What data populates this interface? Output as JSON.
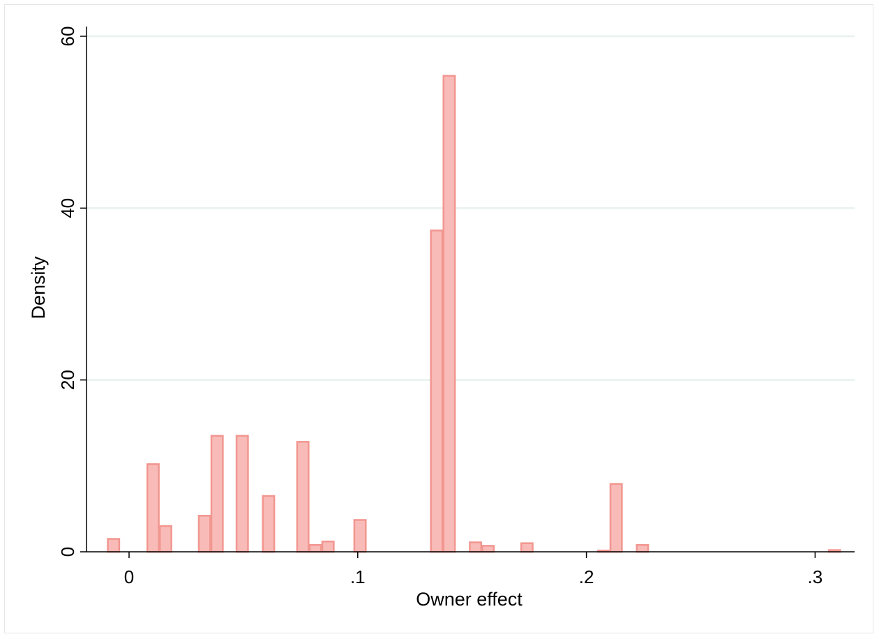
{
  "chart_data": {
    "type": "bar",
    "title": "",
    "xlabel": "Owner effect",
    "ylabel": "Density",
    "xlim": [
      -0.01,
      0.31
    ],
    "ylim": [
      0,
      60
    ],
    "x_ticks": [
      {
        "value": 0,
        "label": "0"
      },
      {
        "value": 0.1,
        "label": ".1"
      },
      {
        "value": 0.2,
        "label": ".2"
      },
      {
        "value": 0.3,
        "label": ".3"
      }
    ],
    "y_ticks": [
      {
        "value": 0,
        "label": "0"
      },
      {
        "value": 20,
        "label": "20"
      },
      {
        "value": 40,
        "label": "40"
      },
      {
        "value": 60,
        "label": "60"
      }
    ],
    "grid": true,
    "bin_width": 0.005,
    "bars": [
      {
        "x": -0.0068,
        "density": 1.5
      },
      {
        "x": 0.0105,
        "density": 10.2
      },
      {
        "x": 0.016,
        "density": 3.0
      },
      {
        "x": 0.033,
        "density": 4.2
      },
      {
        "x": 0.0385,
        "density": 13.5
      },
      {
        "x": 0.0495,
        "density": 13.5
      },
      {
        "x": 0.061,
        "density": 6.5
      },
      {
        "x": 0.076,
        "density": 12.8
      },
      {
        "x": 0.0815,
        "density": 0.8
      },
      {
        "x": 0.087,
        "density": 1.2
      },
      {
        "x": 0.101,
        "density": 3.7
      },
      {
        "x": 0.1345,
        "density": 37.4
      },
      {
        "x": 0.14,
        "density": 55.4
      },
      {
        "x": 0.1515,
        "density": 1.1
      },
      {
        "x": 0.157,
        "density": 0.7
      },
      {
        "x": 0.174,
        "density": 1.0
      },
      {
        "x": 0.2075,
        "density": 0.15
      },
      {
        "x": 0.213,
        "density": 7.9
      },
      {
        "x": 0.2245,
        "density": 0.8
      },
      {
        "x": 0.3085,
        "density": 0.2
      }
    ],
    "colors": {
      "bar_fill": "#f8bbb8",
      "bar_stroke": "#f29690",
      "grid": "#e8f0f0",
      "axis": "#000000"
    }
  }
}
